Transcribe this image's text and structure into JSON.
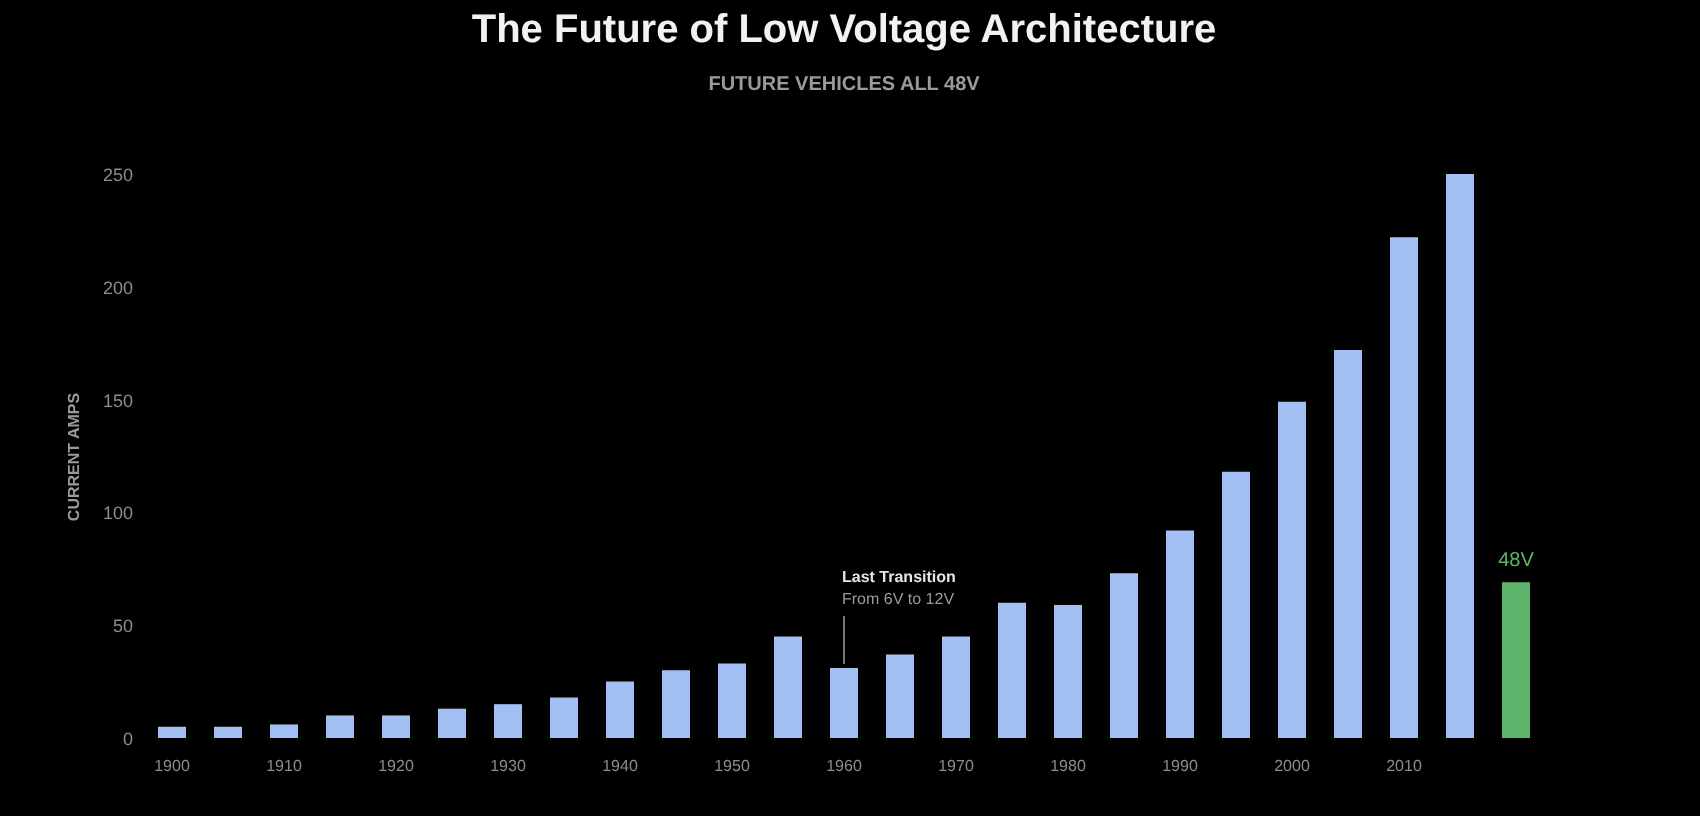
{
  "chart_data": {
    "type": "bar",
    "title": "The Future of Low Voltage Architecture",
    "subtitle": "FUTURE VEHICLES ALL 48V",
    "ylabel": "CURRENT AMPS",
    "categories": [
      "1900",
      null,
      "1910",
      null,
      "1920",
      null,
      "1930",
      null,
      "1940",
      null,
      "1950",
      null,
      "1960",
      null,
      "1970",
      null,
      "1980",
      null,
      "1990",
      null,
      "2000",
      null,
      "2010",
      null,
      null
    ],
    "series": [
      {
        "color": "#a3c0f4",
        "values": [
          5,
          5,
          6,
          10,
          10,
          13,
          15,
          18,
          25,
          30,
          33,
          45,
          31,
          37,
          45,
          60,
          59,
          73,
          92,
          118,
          149,
          172,
          222,
          250,
          null
        ]
      },
      {
        "name": "48V",
        "color": "#5cb56a",
        "values": [
          null,
          null,
          null,
          null,
          null,
          null,
          null,
          null,
          null,
          null,
          null,
          null,
          null,
          null,
          null,
          null,
          null,
          null,
          null,
          null,
          null,
          null,
          null,
          null,
          69
        ]
      }
    ],
    "ylim": [
      0,
      250
    ],
    "yticks": [
      0,
      50,
      100,
      150,
      200,
      250
    ],
    "annotations": [
      "Last Transition",
      {
        "text": "From 6V to 12V",
        "x": "1960",
        "y": 31
      }
    ]
  }
}
